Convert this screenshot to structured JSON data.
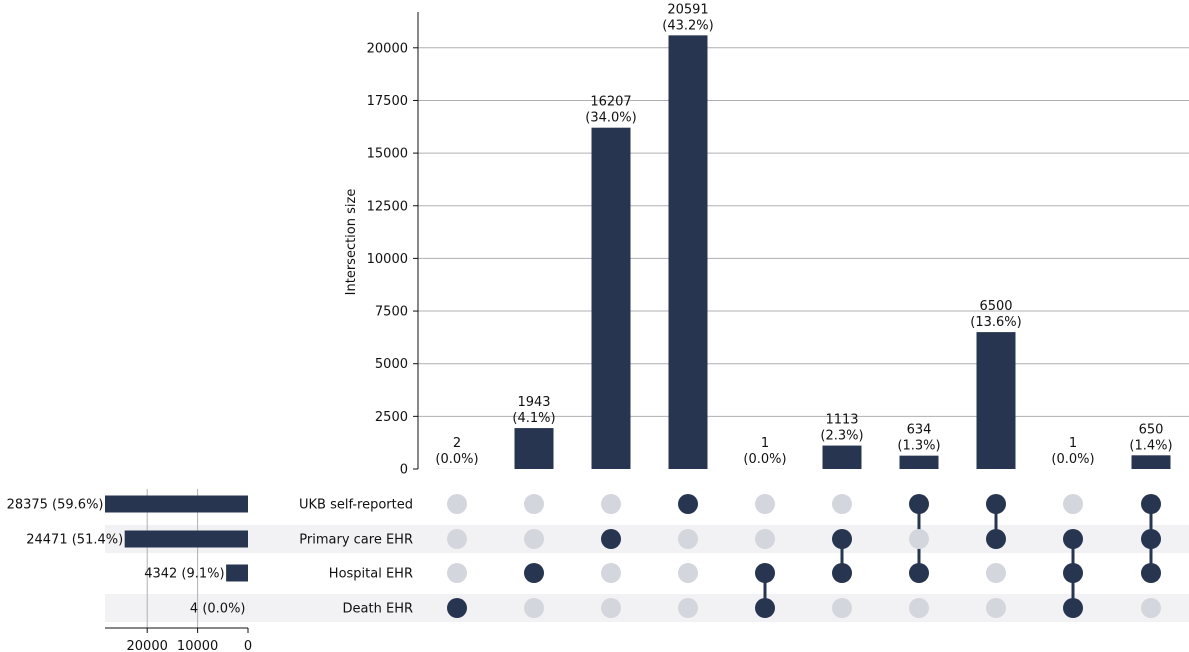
{
  "chart_data": {
    "type": "bar",
    "ylabel": "Intersection size",
    "ylim": [
      0,
      21700
    ],
    "yticks": [
      "0",
      "2500",
      "5000",
      "7500",
      "10000",
      "12500",
      "15000",
      "17500",
      "20000"
    ],
    "ytick_values": [
      0,
      2500,
      5000,
      7500,
      10000,
      12500,
      15000,
      17500,
      20000
    ],
    "grid": true,
    "sets": [
      {
        "name": "UKB self-reported",
        "size": 28375,
        "label": "28375 (59.6%)"
      },
      {
        "name": "Primary care EHR",
        "size": 24471,
        "label": "24471 (51.4%)"
      },
      {
        "name": "Hospital EHR",
        "size": 4342,
        "label": "4342 (9.1%)"
      },
      {
        "name": "Death EHR",
        "size": 4,
        "label": "4 (0.0%)"
      }
    ],
    "set_size_ticks": [
      "20000",
      "10000",
      "0"
    ],
    "set_size_tick_values": [
      20000,
      10000,
      0
    ],
    "set_size_max": 28375,
    "intersections": [
      {
        "members": [
          3
        ],
        "value": 2,
        "count_label": "2",
        "pct_label": "(0.0%)"
      },
      {
        "members": [
          2
        ],
        "value": 1943,
        "count_label": "1943",
        "pct_label": "(4.1%)"
      },
      {
        "members": [
          1
        ],
        "value": 16207,
        "count_label": "16207",
        "pct_label": "(34.0%)"
      },
      {
        "members": [
          0
        ],
        "value": 20591,
        "count_label": "20591",
        "pct_label": "(43.2%)"
      },
      {
        "members": [
          2,
          3
        ],
        "value": 1,
        "count_label": "1",
        "pct_label": "(0.0%)"
      },
      {
        "members": [
          1,
          2
        ],
        "value": 1113,
        "count_label": "1113",
        "pct_label": "(2.3%)"
      },
      {
        "members": [
          0,
          2
        ],
        "value": 634,
        "count_label": "634",
        "pct_label": "(1.3%)"
      },
      {
        "members": [
          0,
          1
        ],
        "value": 6500,
        "count_label": "6500",
        "pct_label": "(13.6%)"
      },
      {
        "members": [
          1,
          2,
          3
        ],
        "value": 1,
        "count_label": "1",
        "pct_label": "(0.0%)"
      },
      {
        "members": [
          0,
          1,
          2
        ],
        "value": 650,
        "count_label": "650",
        "pct_label": "(1.4%)"
      }
    ],
    "colors": {
      "bar": "#273550",
      "dot_inactive": "#d3d6dc",
      "grid": "#b0b0b0",
      "row_shade": "#f2f2f5"
    }
  }
}
